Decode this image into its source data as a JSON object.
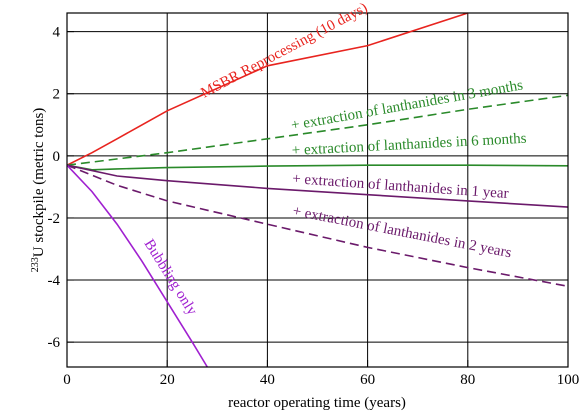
{
  "chart_data": {
    "type": "line",
    "title": "",
    "xlabel": "reactor operating time (years)",
    "ylabel_sup": "233",
    "ylabel_main": "U stockpile (metric tons)",
    "xlim": [
      0,
      100
    ],
    "ylim": [
      -6.8,
      4.6
    ],
    "x_ticks": [
      0,
      20,
      40,
      60,
      80,
      100
    ],
    "y_ticks": [
      -6,
      -4,
      -2,
      0,
      2,
      4
    ],
    "grid": true,
    "series": [
      {
        "label": "MSBR Reprocessing (10 days)",
        "color": "#e8241f",
        "dash": "solid",
        "x": [
          0,
          5,
          10,
          20,
          40,
          60,
          80
        ],
        "y": [
          -0.3,
          0.1,
          0.55,
          1.45,
          2.9,
          3.55,
          4.6
        ]
      },
      {
        "label": "+ extraction of lanthanides in 3 months",
        "color": "#2a8a2a",
        "dash": "dashed",
        "x": [
          0,
          20,
          40,
          60,
          80,
          100
        ],
        "y": [
          -0.3,
          0.1,
          0.55,
          1.0,
          1.5,
          1.95
        ]
      },
      {
        "label": "+ extraction of lanthanides in 6 months",
        "color": "#2a8a2a",
        "dash": "solid",
        "x": [
          0,
          5,
          10,
          20,
          40,
          60,
          80,
          100
        ],
        "y": [
          -0.3,
          -0.45,
          -0.42,
          -0.38,
          -0.33,
          -0.3,
          -0.3,
          -0.32
        ]
      },
      {
        "label": "+ extraction of lanthanides in 1 year",
        "color": "#6b1a6b",
        "dash": "solid",
        "x": [
          0,
          10,
          20,
          40,
          60,
          80,
          100
        ],
        "y": [
          -0.3,
          -0.65,
          -0.8,
          -1.05,
          -1.25,
          -1.45,
          -1.65
        ]
      },
      {
        "label": "+ extraction of lanthanides in 2 years",
        "color": "#6b1a6b",
        "dash": "dashed",
        "x": [
          0,
          10,
          20,
          40,
          60,
          80,
          100
        ],
        "y": [
          -0.3,
          -0.95,
          -1.45,
          -2.2,
          -2.95,
          -3.6,
          -4.2
        ]
      },
      {
        "label": "Bubbling only",
        "color": "#a020d0",
        "dash": "solid",
        "x": [
          0,
          5,
          10,
          15,
          20,
          25,
          28
        ],
        "y": [
          -0.3,
          -1.15,
          -2.2,
          -3.4,
          -4.7,
          -6.0,
          -6.8
        ]
      }
    ]
  }
}
